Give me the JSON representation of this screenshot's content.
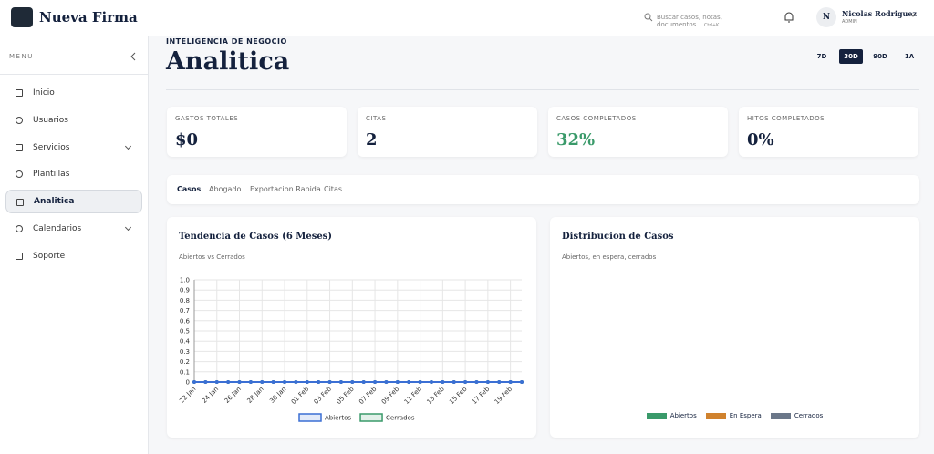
{
  "header": {
    "brand": "Nueva Firma",
    "search_placeholder": "Buscar casos, notas, documentos...",
    "shortcut": "Ctrl+K",
    "avatar": "N",
    "user_name": "Nicolas Rodriguez",
    "user_role": "ADMIN"
  },
  "sidebar": {
    "menu_label": "MENU",
    "items": [
      "Inicio",
      "Usuarios",
      "Servicios",
      "Plantillas",
      "Analitica",
      "Calendarios",
      "Soporte"
    ],
    "active_index": 4
  },
  "page": {
    "eyebrow": "INTELIGENCIA DE NEGOCIO",
    "title": "Analitica",
    "ranges": [
      "7D",
      "30D",
      "90D",
      "1A"
    ],
    "active_range": 1
  },
  "kpis": [
    {
      "label": "GASTOS TOTALES",
      "value": "$0",
      "color": "#14213d"
    },
    {
      "label": "CITAS",
      "value": "2",
      "color": "#14213d"
    },
    {
      "label": "CASOS COMPLETADOS",
      "value": "32%",
      "color": "#3a9a6a"
    },
    {
      "label": "HITOS COMPLETADOS",
      "value": "0%",
      "color": "#14213d"
    }
  ],
  "tabs": {
    "items": [
      "Casos",
      "Abogado",
      "Exportacion Rapida",
      "Citas"
    ],
    "active_index": 0
  },
  "chart_data": {
    "type": "line",
    "title": "Tendencia de Casos (6 Meses)",
    "subtitle": "Abiertos vs Cerrados",
    "categories": [
      "22 Jan",
      null,
      "24 Jan",
      null,
      "26 Jan",
      null,
      "28 Jan",
      null,
      "30 Jan",
      null,
      "01 Feb",
      null,
      "03 Feb",
      null,
      "05 Feb",
      null,
      "07 Feb",
      null,
      "09 Feb",
      null,
      "11 Feb",
      null,
      "13 Feb",
      null,
      "15 Feb",
      null,
      "17 Feb",
      null,
      "19 Feb",
      null
    ],
    "series": [
      {
        "name": "Abiertos",
        "color": "#3b6fd4",
        "values": [
          0,
          0,
          0,
          0,
          0,
          0,
          0,
          0,
          0,
          0,
          0,
          0,
          0,
          0,
          0,
          0,
          0,
          0,
          0,
          0,
          0,
          0,
          0,
          0,
          0,
          0,
          0,
          0,
          0,
          0
        ]
      },
      {
        "name": "Cerrados",
        "color": "#3a9a6a",
        "values": [
          0,
          0,
          0,
          0,
          0,
          0,
          0,
          0,
          0,
          0,
          0,
          0,
          0,
          0,
          0,
          0,
          0,
          0,
          0,
          0,
          0,
          0,
          0,
          0,
          0,
          0,
          0,
          0,
          0,
          0
        ]
      }
    ],
    "ylim": [
      0,
      1
    ],
    "yticks": [
      0,
      0.1,
      0.2,
      0.3,
      0.4,
      0.5,
      0.6,
      0.7,
      0.8,
      0.9,
      {
        "value": 1,
        "label": "1.0"
      }
    ],
    "grid": true
  },
  "distribution": {
    "title": "Distribucion de Casos",
    "subtitle": "Abiertos, en espera, cerrados",
    "legend": [
      {
        "name": "Abiertos",
        "color": "#3a9a6a"
      },
      {
        "name": "En Espera",
        "color": "#d0822e"
      },
      {
        "name": "Cerrados",
        "color": "#6b7789"
      }
    ]
  }
}
